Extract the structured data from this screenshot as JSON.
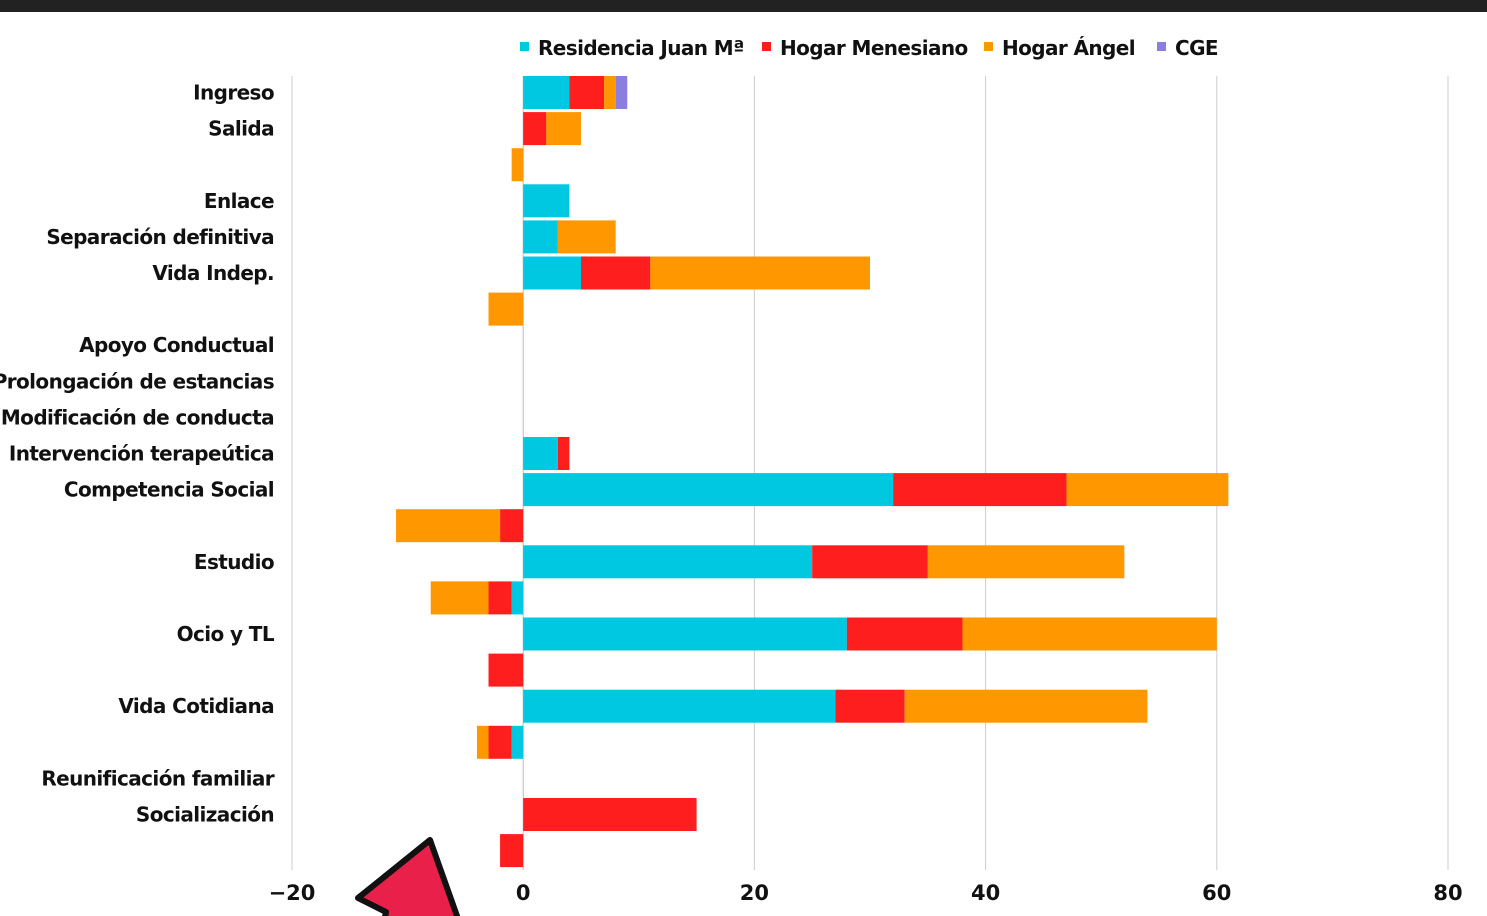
{
  "chart_data": {
    "type": "bar",
    "orientation": "horizontal",
    "stacked": true,
    "legend_position": "top",
    "grid": true,
    "xlim": [
      -20,
      80
    ],
    "xticks": [
      -20,
      0,
      20,
      40,
      60,
      80
    ],
    "categories": [
      "Ingreso",
      "Salida",
      "",
      "Enlace",
      "Separación definitiva",
      "Vida Indep.",
      "",
      "Apoyo Conductual",
      "Prolongación de estancias",
      "Modificación de conducta",
      "Intervención terapeútica",
      "Competencia Social",
      "",
      "Estudio",
      "",
      "Ocio y TL",
      "",
      "Vida Cotidiana",
      "",
      "Reunificación familiar",
      "Socialización",
      ""
    ],
    "series": [
      {
        "name": "Residencia Juan Mª",
        "color": "#00c8e0",
        "values": [
          4,
          0,
          0,
          4,
          3,
          5,
          0,
          0,
          0,
          0,
          3,
          32,
          0,
          25,
          -1,
          28,
          0,
          27,
          -1,
          0,
          0,
          0
        ]
      },
      {
        "name": "Hogar Menesiano",
        "color": "#ff1e1e",
        "values": [
          3,
          2,
          0,
          0,
          0,
          6,
          0,
          0,
          0,
          0,
          1,
          15,
          -2,
          10,
          -2,
          10,
          -3,
          6,
          -2,
          0,
          15,
          -2
        ]
      },
      {
        "name": "Hogar Ángel",
        "color": "#ff9800",
        "values": [
          1,
          3,
          -1,
          0,
          5,
          19,
          -3,
          0,
          0,
          0,
          0,
          14,
          -9,
          17,
          -5,
          22,
          0,
          21,
          -1,
          0,
          0,
          0
        ]
      },
      {
        "name": "CGE",
        "color": "#8a7fe0",
        "values": [
          1,
          0,
          0,
          0,
          0,
          0,
          0,
          0,
          0,
          0,
          0,
          0,
          0,
          0,
          0,
          0,
          0,
          0,
          0,
          0,
          0,
          0
        ]
      }
    ]
  },
  "decor": {
    "arrow_color": "#e8204a"
  }
}
